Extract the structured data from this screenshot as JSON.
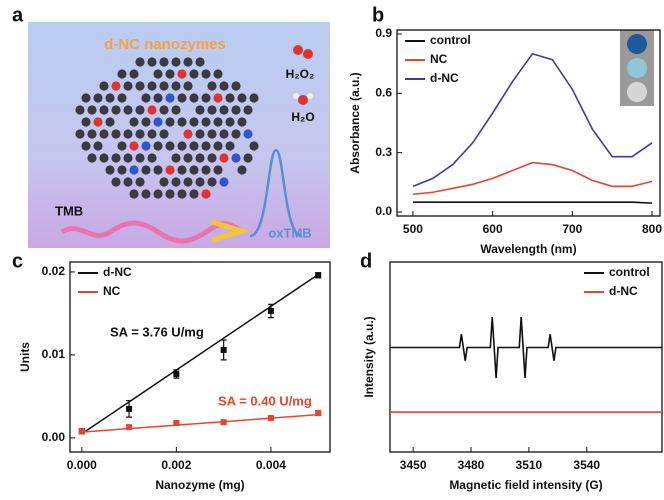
{
  "illustration": {
    "panel_label": "a",
    "title": "d-NC nanozymes",
    "reagent": "H₂O₂",
    "product": "H₂O",
    "substrate": "TMB",
    "oxidized": "oxTMB"
  },
  "chart_data": [
    {
      "type": "line",
      "panel_label": "b",
      "xlabel": "Wavelength (nm)",
      "ylabel": "Absorbance (a.u.)",
      "x": [
        500,
        525,
        550,
        575,
        600,
        625,
        650,
        675,
        700,
        725,
        750,
        775,
        800
      ],
      "series": [
        {
          "name": "control",
          "color": "#111111",
          "values": [
            0.05,
            0.05,
            0.05,
            0.05,
            0.05,
            0.05,
            0.05,
            0.05,
            0.05,
            0.05,
            0.05,
            0.05,
            0.045
          ]
        },
        {
          "name": "NC",
          "color": "#e8452c",
          "values": [
            0.09,
            0.1,
            0.12,
            0.14,
            0.17,
            0.21,
            0.25,
            0.24,
            0.21,
            0.16,
            0.13,
            0.13,
            0.155
          ]
        },
        {
          "name": "d-NC",
          "color": "#3a3ab0",
          "values": [
            0.13,
            0.17,
            0.24,
            0.35,
            0.5,
            0.66,
            0.8,
            0.77,
            0.62,
            0.42,
            0.28,
            0.28,
            0.35
          ]
        }
      ],
      "xlim": [
        480,
        810
      ],
      "ylim": [
        -0.02,
        0.92
      ],
      "xticks": [
        500,
        600,
        700,
        800
      ],
      "yticks": [
        {
          "value": 0,
          "label": "0.0"
        },
        0.3,
        0.6,
        0.9
      ],
      "legend": "upper left"
    },
    {
      "type": "scatter",
      "panel_label": "c",
      "xlabel": "Nanozyme (mg)",
      "ylabel": "Units",
      "x": [
        0,
        0.001,
        0.002,
        0.003,
        0.004,
        0.005
      ],
      "series": [
        {
          "name": "d-NC",
          "color": "#111111",
          "values": [
            0.0008,
            0.0035,
            0.0077,
            0.0106,
            0.0153,
            0.0196
          ],
          "errors": [
            0.0003,
            0.001,
            0.0005,
            0.0012,
            0.0008,
            0.0003
          ],
          "fit": {
            "x": [
              0,
              0.005
            ],
            "values": [
              0.0005,
              0.0197
            ]
          },
          "annotation": "SA = 3.76 U/mg"
        },
        {
          "name": "NC",
          "color": "#e8452c",
          "values": [
            0.0008,
            0.0013,
            0.0018,
            0.0019,
            0.0024,
            0.003
          ],
          "errors": [
            0.0003,
            0.0002,
            0.0001,
            0.0001,
            0.0001,
            0.0003
          ],
          "fit": {
            "x": [
              0,
              0.005
            ],
            "values": [
              0.0007,
              0.0028
            ]
          },
          "annotation": "SA = 0.40 U/mg"
        }
      ],
      "xlim": [
        -0.00025,
        0.00525
      ],
      "ylim": [
        -0.0017,
        0.0212
      ],
      "xticks": [
        {
          "value": 0,
          "label": "0.000"
        },
        {
          "value": 0.002,
          "label": "0.002"
        },
        {
          "value": 0.004,
          "label": "0.004"
        }
      ],
      "yticks": [
        {
          "value": 0,
          "label": "0.00"
        },
        {
          "value": 0.01,
          "label": "0.01"
        },
        {
          "value": 0.02,
          "label": "0.02"
        }
      ],
      "legend": "upper left"
    },
    {
      "type": "line",
      "panel_label": "d",
      "xlabel": "Magnetic field intensity (G)",
      "ylabel": "Intensity (a.u.)",
      "x": [
        3438,
        3474,
        3475,
        3477,
        3478,
        3490,
        3491,
        3493,
        3494,
        3505,
        3506,
        3508,
        3509,
        3520,
        3521,
        3523,
        3524,
        3579
      ],
      "series": [
        {
          "name": "control",
          "color": "#111111",
          "values": [
            0.55,
            0.55,
            0.62,
            0.48,
            0.55,
            0.55,
            0.71,
            0.39,
            0.55,
            0.55,
            0.71,
            0.39,
            0.55,
            0.55,
            0.62,
            0.48,
            0.55,
            0.55
          ]
        },
        {
          "name": "d-NC",
          "color": "#e8452c",
          "values": [
            0.21,
            0.21,
            0.21,
            0.21,
            0.21,
            0.21,
            0.21,
            0.21,
            0.21,
            0.21,
            0.21,
            0.21,
            0.21,
            0.21,
            0.21,
            0.21,
            0.21,
            0.21
          ]
        }
      ],
      "xlim": [
        3438,
        3579
      ],
      "ylim": [
        0,
        1
      ],
      "xticks": [
        3450,
        3480,
        3510,
        3540
      ],
      "legend": "upper right"
    }
  ]
}
